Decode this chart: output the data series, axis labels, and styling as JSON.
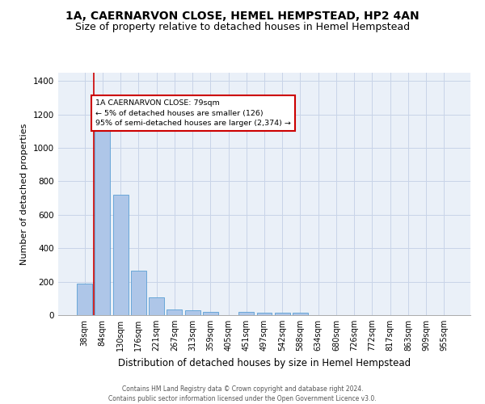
{
  "title": "1A, CAERNARVON CLOSE, HEMEL HEMPSTEAD, HP2 4AN",
  "subtitle": "Size of property relative to detached houses in Hemel Hempstead",
  "xlabel": "Distribution of detached houses by size in Hemel Hempstead",
  "ylabel": "Number of detached properties",
  "footnote1": "Contains HM Land Registry data © Crown copyright and database right 2024.",
  "footnote2": "Contains public sector information licensed under the Open Government Licence v3.0.",
  "bar_labels": [
    "38sqm",
    "84sqm",
    "130sqm",
    "176sqm",
    "221sqm",
    "267sqm",
    "313sqm",
    "359sqm",
    "405sqm",
    "451sqm",
    "497sqm",
    "542sqm",
    "588sqm",
    "634sqm",
    "680sqm",
    "726sqm",
    "772sqm",
    "817sqm",
    "863sqm",
    "909sqm",
    "955sqm"
  ],
  "bar_values": [
    190,
    1145,
    720,
    265,
    108,
    33,
    27,
    17,
    0,
    18,
    15,
    15,
    15,
    0,
    0,
    0,
    0,
    0,
    0,
    0,
    0
  ],
  "bar_color": "#aec6e8",
  "bar_edge_color": "#5a9fd4",
  "grid_color": "#c8d4e8",
  "background_color": "#eaf0f8",
  "ylim": [
    0,
    1450
  ],
  "yticks": [
    0,
    200,
    400,
    600,
    800,
    1000,
    1200,
    1400
  ],
  "property_label": "1A CAERNARVON CLOSE: 79sqm",
  "annotation_line1": "← 5% of detached houses are smaller (126)",
  "annotation_line2": "95% of semi-detached houses are larger (2,374) →",
  "annotation_box_color": "#cc0000",
  "vline_position": 0.5,
  "title_fontsize": 10,
  "subtitle_fontsize": 9,
  "ylabel_fontsize": 8,
  "xlabel_fontsize": 8.5,
  "tick_fontsize": 7,
  "footnote_fontsize": 5.5
}
